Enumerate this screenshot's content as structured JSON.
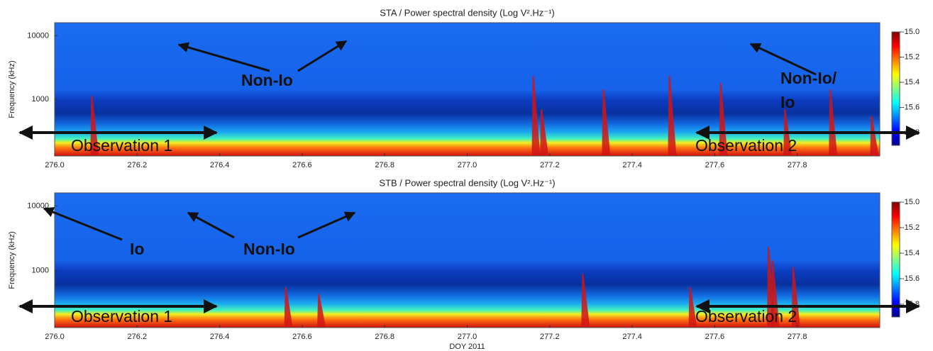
{
  "chart_data": [
    {
      "type": "heatmap",
      "title": "STA / Power spectral density (Log V².Hz⁻¹)",
      "ylabel": "Frequency (kHz)",
      "xlim": [
        276.0,
        278.0
      ],
      "xticks": [
        {
          "value": 276.0,
          "label": "276.0"
        },
        {
          "value": 276.2,
          "label": "276.2"
        },
        {
          "value": 276.4,
          "label": "276.4"
        },
        {
          "value": 276.6,
          "label": "276.6"
        },
        {
          "value": 276.8,
          "label": "276.8"
        },
        {
          "value": 277.0,
          "label": "277.0"
        },
        {
          "value": 277.2,
          "label": "277.2"
        },
        {
          "value": 277.4,
          "label": "277.4"
        },
        {
          "value": 277.6,
          "label": "277.6"
        },
        {
          "value": 277.8,
          "label": "277.8"
        }
      ],
      "ylim": [
        130,
        16000
      ],
      "yticks": [
        1000,
        10000
      ],
      "log_y": true,
      "colormap": "jet",
      "colorbar": {
        "lim": [
          -15.9,
          -15.0
        ],
        "ticks": [
          {
            "value": -15.0,
            "label": "-15.0"
          },
          -15.2,
          -15.4,
          -15.6,
          -15.8
        ]
      },
      "annotations": [
        "Non-Io",
        "Non-Io/",
        "Io",
        "Observation 1",
        "Observation 2"
      ]
    },
    {
      "type": "heatmap",
      "title": "STB / Power spectral density (Log V².Hz⁻¹)",
      "ylabel": "Frequency (kHz)",
      "xlabel": "DOY 2011",
      "xlim": [
        276.0,
        278.0
      ],
      "xticks": [
        {
          "value": 276.0,
          "label": "276.0"
        },
        {
          "value": 276.2,
          "label": "276.2"
        },
        {
          "value": 276.4,
          "label": "276.4"
        },
        {
          "value": 276.6,
          "label": "276.6"
        },
        {
          "value": 276.8,
          "label": "276.8"
        },
        {
          "value": 277.0,
          "label": "277.0"
        },
        {
          "value": 277.2,
          "label": "277.2"
        },
        {
          "value": 277.4,
          "label": "277.4"
        },
        {
          "value": 277.6,
          "label": "277.6"
        },
        {
          "value": 277.8,
          "label": "277.8"
        }
      ],
      "ylim": [
        130,
        16000
      ],
      "yticks": [
        1000,
        10000
      ],
      "log_y": true,
      "colormap": "jet",
      "colorbar": {
        "lim": [
          -15.9,
          -15.0
        ],
        "ticks": [
          {
            "value": -15.0,
            "label": "-15.0"
          },
          -15.2,
          -15.4,
          -15.6,
          -15.8
        ]
      },
      "annotations": [
        "Io",
        "Non-Io",
        "Observation 1",
        "Observation 2"
      ]
    }
  ]
}
